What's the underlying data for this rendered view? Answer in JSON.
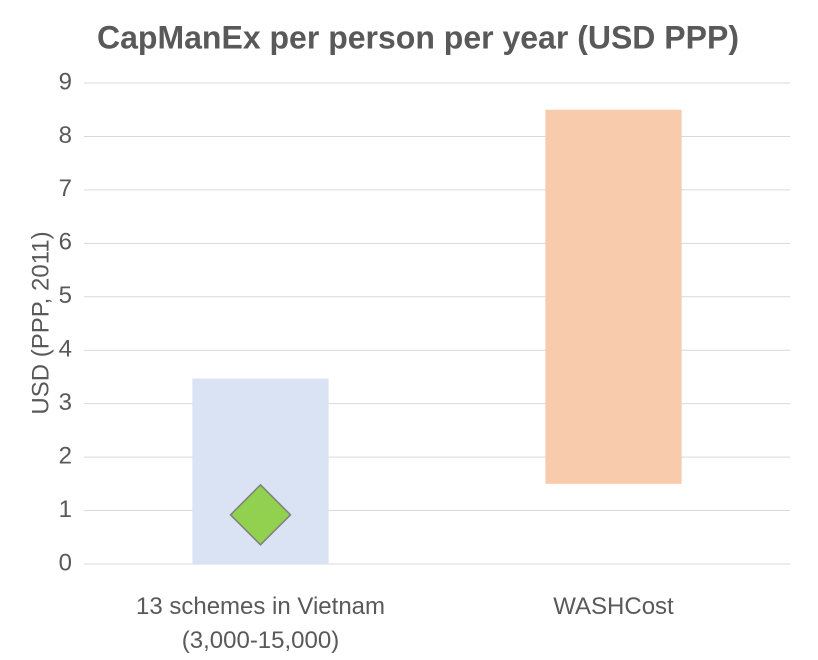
{
  "chart_data": {
    "type": "floating-bar",
    "title": "CapManEx per person per year (USD PPP)",
    "ylabel": "USD (PPP, 2011)",
    "categories": [
      "13 schemes in Vietnam (3,000-15,000)",
      "WASHCost"
    ],
    "low": [
      0,
      1.5
    ],
    "high": [
      3.47,
      8.5
    ],
    "colors": [
      "#dae3f3",
      "#f8cbad"
    ],
    "marker": {
      "values": [
        0.92,
        null
      ],
      "color": "#92d050"
    },
    "ylim": [
      0,
      9
    ],
    "yticks": [
      0,
      1,
      2,
      3,
      4,
      5,
      6,
      7,
      8,
      9
    ],
    "grid": true
  }
}
